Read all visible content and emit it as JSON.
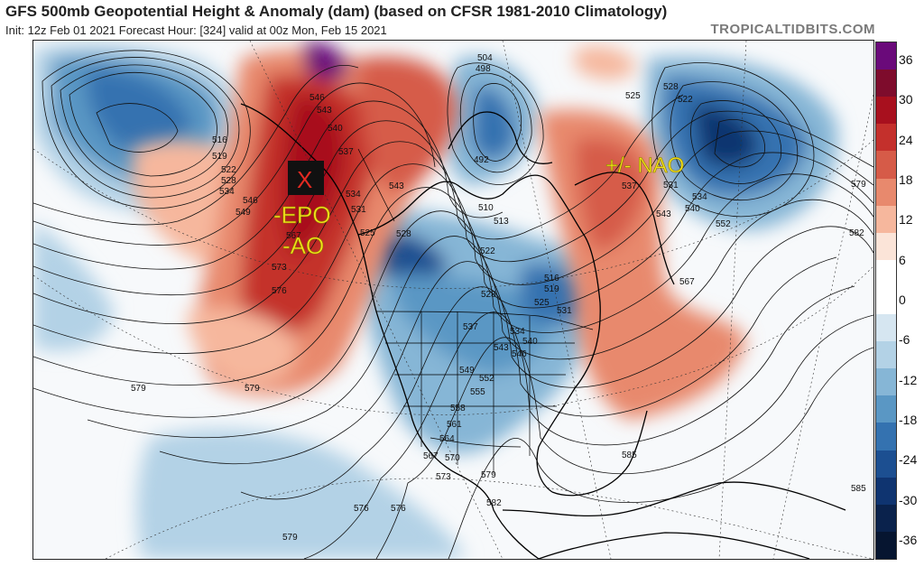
{
  "header": {
    "title": "GFS 500mb Geopotential Height & Anomaly (dam) (based on CFSR 1981-2010 Climatology)",
    "subtitle": "Init: 12z Feb 01 2021   Forecast Hour: [324]   valid at 00z Mon, Feb 15 2021",
    "credit": "TROPICALTIDBITS.COM"
  },
  "annotations": {
    "marker": "X",
    "epo": "-EPO",
    "ao": "-AO",
    "nao": "+/- NAO"
  },
  "contour_labels": [
    "504",
    "498",
    "492",
    "510",
    "513",
    "516",
    "519",
    "522",
    "525",
    "528",
    "531",
    "534",
    "537",
    "540",
    "543",
    "546",
    "549",
    "552",
    "555",
    "558",
    "561",
    "564",
    "567",
    "570",
    "573",
    "576",
    "579",
    "582",
    "585"
  ],
  "contour_label_instances": [
    {
      "text": "504"
    },
    {
      "text": "498"
    },
    {
      "text": "492"
    },
    {
      "text": "510"
    },
    {
      "text": "513"
    },
    {
      "text": "522"
    },
    {
      "text": "516"
    },
    {
      "text": "519"
    },
    {
      "text": "522"
    },
    {
      "text": "528"
    },
    {
      "text": "534"
    },
    {
      "text": "546"
    },
    {
      "text": "549"
    },
    {
      "text": "546"
    },
    {
      "text": "543"
    },
    {
      "text": "540"
    },
    {
      "text": "537"
    },
    {
      "text": "543"
    },
    {
      "text": "534"
    },
    {
      "text": "531"
    },
    {
      "text": "525"
    },
    {
      "text": "528"
    },
    {
      "text": "567"
    },
    {
      "text": "573"
    },
    {
      "text": "576"
    },
    {
      "text": "579"
    },
    {
      "text": "525"
    },
    {
      "text": "528"
    },
    {
      "text": "522"
    },
    {
      "text": "537"
    },
    {
      "text": "531"
    },
    {
      "text": "534"
    },
    {
      "text": "540"
    },
    {
      "text": "552"
    },
    {
      "text": "543"
    },
    {
      "text": "567"
    },
    {
      "text": "579"
    },
    {
      "text": "582"
    },
    {
      "text": "516"
    },
    {
      "text": "519"
    },
    {
      "text": "525"
    },
    {
      "text": "531"
    },
    {
      "text": "528"
    },
    {
      "text": "537"
    },
    {
      "text": "534"
    },
    {
      "text": "540"
    },
    {
      "text": "543"
    },
    {
      "text": "546"
    },
    {
      "text": "549"
    },
    {
      "text": "552"
    },
    {
      "text": "555"
    },
    {
      "text": "558"
    },
    {
      "text": "561"
    },
    {
      "text": "564"
    },
    {
      "text": "567"
    },
    {
      "text": "570"
    },
    {
      "text": "573"
    },
    {
      "text": "576"
    },
    {
      "text": "579"
    },
    {
      "text": "582"
    },
    {
      "text": "585"
    },
    {
      "text": "585"
    },
    {
      "text": "579"
    },
    {
      "text": "576"
    },
    {
      "text": "579"
    }
  ],
  "colorbar": {
    "ticks": [
      "36",
      "30",
      "24",
      "18",
      "12",
      "6",
      "0",
      "-6",
      "-12",
      "-18",
      "-24",
      "-30",
      "-36"
    ],
    "colors": [
      "#6a0a7a",
      "#7e0c2c",
      "#a8101e",
      "#c4302c",
      "#d65b48",
      "#e8896d",
      "#f6b79d",
      "#fbe4d8",
      "#ffffff",
      "#ffffff",
      "#d6e6f1",
      "#b3d2e6",
      "#86b6d6",
      "#5a97c4",
      "#3472b0",
      "#1c4f91",
      "#0f3470",
      "#0a224c",
      "#061530"
    ]
  },
  "colors": {
    "frame": "#222222",
    "land": "#f7f9fb",
    "credit": "#7a7a7a",
    "annotation": "#f3e21a"
  }
}
